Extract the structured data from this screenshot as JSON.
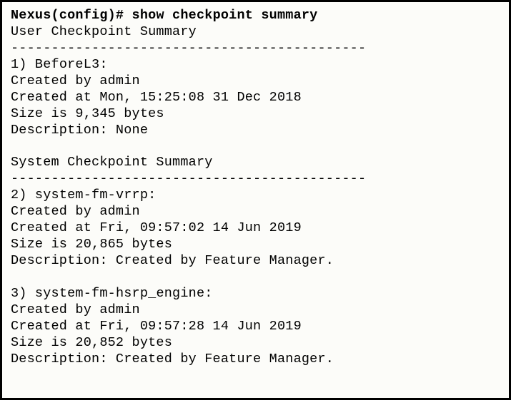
{
  "prompt": {
    "host": "Nexus(config)#",
    "command": "show checkpoint summary"
  },
  "sections": [
    {
      "heading": "User Checkpoint Summary",
      "divider": "--------------------------------------------",
      "entries": [
        {
          "index": "1)",
          "name": "BeforeL3:",
          "created_by": "Created by admin",
          "created_at": "Created at Mon, 15:25:08 31 Dec 2018",
          "size": "Size is 9,345 bytes",
          "description": "Description: None"
        }
      ]
    },
    {
      "heading": "System Checkpoint Summary",
      "divider": "--------------------------------------------",
      "entries": [
        {
          "index": "2)",
          "name": "system-fm-vrrp:",
          "created_by": "Created by admin",
          "created_at": "Created at Fri, 09:57:02 14 Jun 2019",
          "size": "Size is 20,865 bytes",
          "description": "Description: Created by Feature Manager."
        },
        {
          "index": "3)",
          "name": "system-fm-hsrp_engine:",
          "created_by": "Created by admin",
          "created_at": "Created at Fri, 09:57:28 14 Jun 2019",
          "size": "Size is 20,852 bytes",
          "description": "Description: Created by Feature Manager."
        }
      ]
    }
  ]
}
